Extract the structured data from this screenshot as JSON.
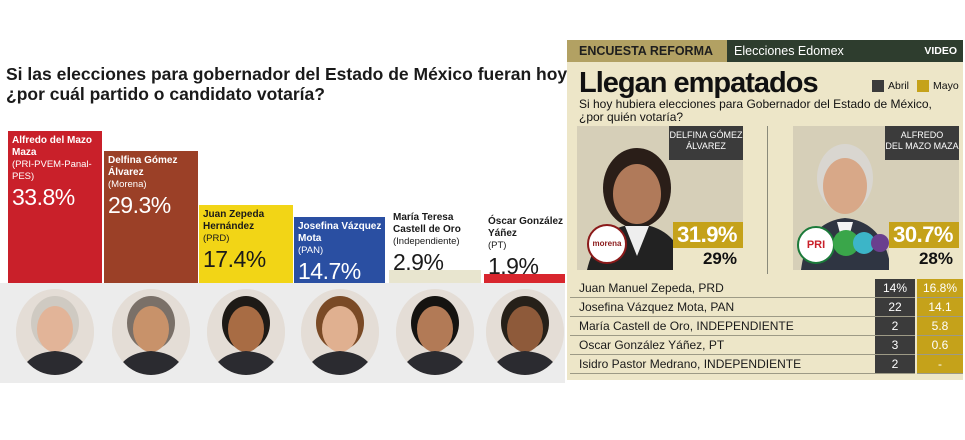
{
  "left_chart": {
    "question_line1": "Si las elecciones para gobernador del Estado de México fueran hoy",
    "question_line2": "¿por cuál partido o candidato votaría?",
    "candidates": [
      {
        "name": "Alfredo del Mazo Maza",
        "party": "(PRI-PVEM-Panal-PES)",
        "pct": "33.8%",
        "color": "#c9202a"
      },
      {
        "name": "Delfina Gómez Álvarez",
        "party": "(Morena)",
        "pct": "29.3%",
        "color": "#9b4027"
      },
      {
        "name": "Juan Zepeda Hernández",
        "party": "(PRD)",
        "pct": "17.4%",
        "color": "#f2d516"
      },
      {
        "name": "Josefina Vázquez Mota",
        "party": "(PAN)",
        "pct": "14.7%",
        "color": "#2a4fa2"
      },
      {
        "name": "María Teresa Castell de Oro",
        "party": "(Independiente)",
        "pct": "2.9%",
        "color": "#e8e5cf"
      },
      {
        "name": "Óscar González Yáñez",
        "party": "(PT)",
        "pct": "1.9%",
        "color": "#d8262e"
      }
    ]
  },
  "right_panel": {
    "tag": "ENCUESTA REFORMA",
    "section": "Elecciones Edomex",
    "video_label": "VIDEO",
    "title": "Llegan empatados",
    "legend": {
      "abril": "Abril",
      "mayo": "Mayo",
      "abril_color": "#3b3b3b",
      "mayo_color": "#c5a21a"
    },
    "question_line1": "Si hoy hubiera elecciones para Gobernador del Estado de México,",
    "question_line2": "¿por quién votaría?",
    "featured": [
      {
        "name_line1": "DELFINA GÓMEZ",
        "name_line2": "ÁLVAREZ",
        "mayo": "31.9%",
        "abril": "29%",
        "logo_text": "morena"
      },
      {
        "name_line1": "ALFREDO",
        "name_line2": "DEL MAZO MAZA",
        "mayo": "30.7%",
        "abril": "28%",
        "logo_text": "PRI"
      }
    ],
    "others": [
      {
        "name": "Juan Manuel Zepeda, PRD",
        "abril": "14%",
        "mayo": "16.8%"
      },
      {
        "name": "Josefina Vázquez Mota, PAN",
        "abril": "22",
        "mayo": "14.1"
      },
      {
        "name": "María Castell de Oro, INDEPENDIENTE",
        "abril": "2",
        "mayo": "5.8"
      },
      {
        "name": "Oscar González Yáñez, PT",
        "abril": "3",
        "mayo": "0.6"
      },
      {
        "name": "Isidro Pastor Medrano, INDEPENDIENTE",
        "abril": "2",
        "mayo": "-"
      }
    ]
  },
  "chart_data": [
    {
      "type": "bar",
      "title": "Si las elecciones para gobernador del Estado de México fueran hoy ¿por cuál partido o candidato votaría?",
      "categories": [
        "Alfredo del Mazo Maza",
        "Delfina Gómez Álvarez",
        "Juan Zepeda Hernández",
        "Josefina Vázquez Mota",
        "María Teresa Castell de Oro",
        "Óscar González Yáñez"
      ],
      "values": [
        33.8,
        29.3,
        17.4,
        14.7,
        2.9,
        1.9
      ]
    },
    {
      "type": "table",
      "title": "Llegan empatados",
      "series": [
        {
          "name": "Abril",
          "values": [
            29,
            28,
            14,
            22,
            2,
            3,
            2
          ]
        },
        {
          "name": "Mayo",
          "values": [
            31.9,
            30.7,
            16.8,
            14.1,
            5.8,
            0.6,
            null
          ]
        }
      ],
      "categories": [
        "Delfina Gómez Álvarez",
        "Alfredo del Mazo Maza",
        "Juan Manuel Zepeda, PRD",
        "Josefina Vázquez Mota, PAN",
        "María Castell de Oro, INDEPENDIENTE",
        "Oscar González Yáñez, PT",
        "Isidro Pastor Medrano, INDEPENDIENTE"
      ]
    }
  ]
}
